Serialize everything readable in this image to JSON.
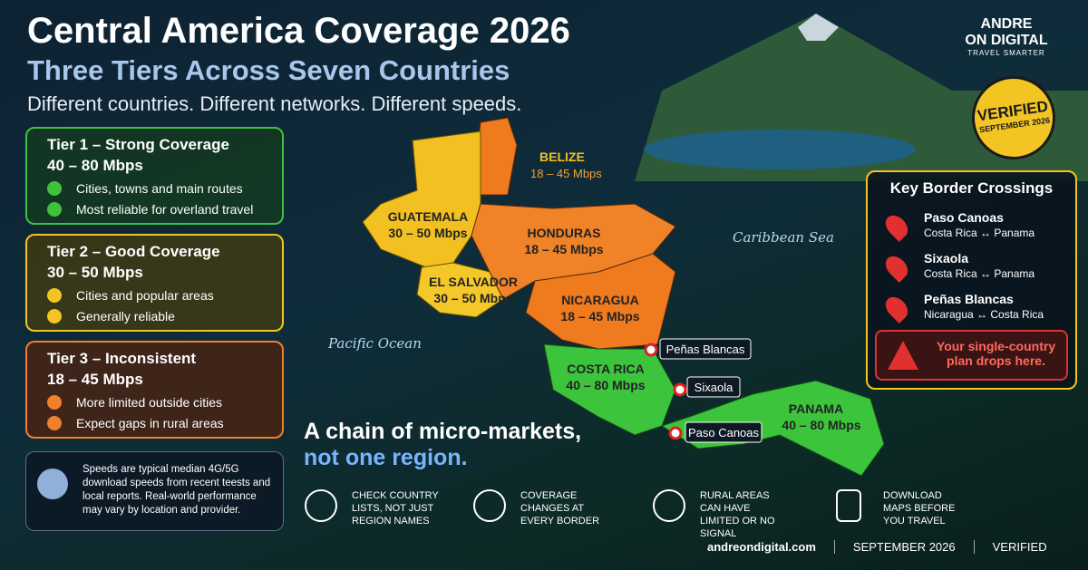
{
  "header": {
    "title": "Central America Coverage 2026",
    "subtitle": "Three Tiers Across Seven Countries",
    "tagline": "Different countries. Different networks. Different speeds."
  },
  "brand": {
    "line1": "ANDRE",
    "line2": "ON DIGITAL",
    "tagline": "TRAVEL SMARTER"
  },
  "badge": {
    "label": "VERIFIED",
    "date": "SEPTEMBER 2026"
  },
  "tiers": [
    {
      "title": "Tier 1 – Strong Coverage",
      "speed": "40 – 80 Mbps",
      "items": [
        "Cities, towns and main routes",
        "Most reliable for overland travel"
      ]
    },
    {
      "title": "Tier 2 – Good Coverage",
      "speed": "30 – 50 Mbps",
      "items": [
        "Cities and popular areas",
        "Generally reliable"
      ]
    },
    {
      "title": "Tier 3 – Inconsistent",
      "speed": "18 – 45 Mbps",
      "items": [
        "More limited outside cities",
        "Expect gaps in rural areas"
      ]
    }
  ],
  "note": "Speeds are typical median 4G/5G download speeds from recent teests and local reports. Real-world performance may vary by location and provider.",
  "map": {
    "countries": [
      {
        "name": "BELIZE",
        "speed": "18 – 45 Mbps"
      },
      {
        "name": "GUATEMALA",
        "speed": "30 – 50 Mbps"
      },
      {
        "name": "EL SALVADOR",
        "speed": "30 – 50 Mbps"
      },
      {
        "name": "HONDURAS",
        "speed": "18 – 45 Mbps"
      },
      {
        "name": "NICARAGUA",
        "speed": "18 – 45 Mbps"
      },
      {
        "name": "COSTA RICA",
        "speed": "40 – 80 Mbps"
      },
      {
        "name": "PANAMA",
        "speed": "40 – 80 Mbps"
      }
    ],
    "seas": [
      "Caribbean Sea",
      "Pacific Ocean"
    ],
    "markers": [
      "Peñas Blancas",
      "Sixaola",
      "Paso Canoas"
    ]
  },
  "crossings": {
    "title": "Key Border Crossings",
    "items": [
      {
        "name": "Paso Canoas",
        "route": "Costa Rica ↔ Panama"
      },
      {
        "name": "Sixaola",
        "route": "Costa Rica ↔ Panama"
      },
      {
        "name": "Peñas Blancas",
        "route": "Nicaragua ↔ Costa Rica"
      }
    ],
    "warning": "Your single-country plan drops here."
  },
  "slogan": {
    "line1": "A chain of micro-markets,",
    "line2": "not one region."
  },
  "tips": [
    "CHECK COUNTRY LISTS, NOT JUST REGION NAMES",
    "COVERAGE CHANGES AT EVERY BORDER",
    "RURAL AREAS CAN HAVE LIMITED OR NO SIGNAL",
    "DOWNLOAD MAPS BEFORE YOU TRAVEL"
  ],
  "footer": [
    "andreondigital.com",
    "SEPTEMBER 2026",
    "VERIFIED"
  ]
}
